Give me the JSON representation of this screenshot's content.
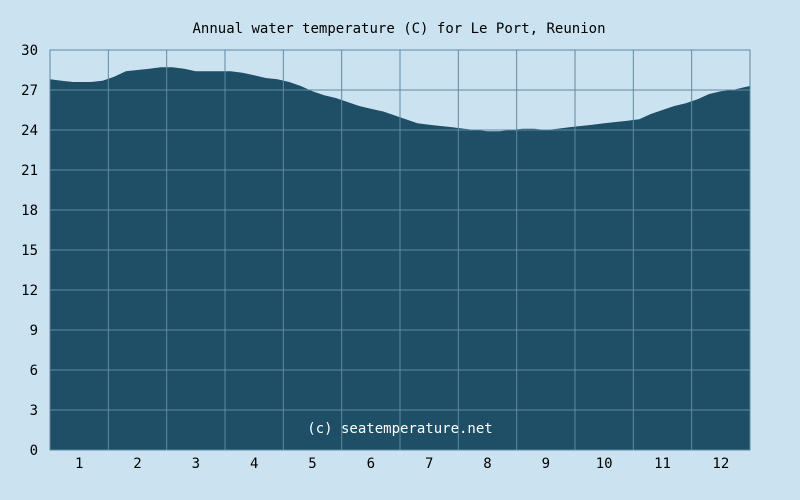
{
  "chart_data": {
    "type": "area",
    "title": "Annual water temperature (C) for Le Port, Reunion",
    "xlabel": "",
    "ylabel": "",
    "xlim": [
      0.5,
      12.5
    ],
    "ylim": [
      0,
      30
    ],
    "x_ticks": [
      "1",
      "2",
      "3",
      "4",
      "5",
      "6",
      "7",
      "8",
      "9",
      "10",
      "11",
      "12"
    ],
    "y_ticks": [
      "0",
      "3",
      "6",
      "9",
      "12",
      "15",
      "18",
      "21",
      "24",
      "27",
      "30"
    ],
    "grid": true,
    "watermark": "(c) seatemperature.net",
    "colors": {
      "background": "#cbe3f0",
      "area": "#1f4e67",
      "grid": "#5f8aa3",
      "frame": "#5f8aa3"
    },
    "series": [
      {
        "x": [
          0.5,
          0.7,
          0.9,
          1.0,
          1.2,
          1.4,
          1.6,
          1.8,
          2.0,
          2.2,
          2.4,
          2.6,
          2.8,
          3.0,
          3.2,
          3.4,
          3.6,
          3.8,
          4.0,
          4.2,
          4.4,
          4.6,
          4.8,
          5.0,
          5.2,
          5.4,
          5.6,
          5.8,
          6.0,
          6.2,
          6.4,
          6.6,
          6.8,
          7.0,
          7.2,
          7.4,
          7.6,
          7.8,
          8.0,
          8.2,
          8.4,
          8.6,
          8.8,
          9.0,
          9.2,
          9.4,
          9.6,
          9.8,
          10.0,
          10.2,
          10.4,
          10.6,
          10.8,
          11.0,
          11.2,
          11.4,
          11.6,
          11.8,
          12.0,
          12.2,
          12.4,
          12.5
        ],
        "values": [
          27.8,
          27.7,
          27.6,
          27.6,
          27.6,
          27.7,
          28.0,
          28.4,
          28.5,
          28.6,
          28.7,
          28.7,
          28.6,
          28.4,
          28.4,
          28.4,
          28.4,
          28.3,
          28.1,
          27.9,
          27.8,
          27.6,
          27.3,
          26.9,
          26.6,
          26.4,
          26.1,
          25.8,
          25.6,
          25.4,
          25.1,
          24.8,
          24.5,
          24.4,
          24.3,
          24.2,
          24.1,
          24.0,
          23.9,
          23.9,
          24.0,
          24.1,
          24.1,
          24.0,
          24.1,
          24.2,
          24.3,
          24.4,
          24.5,
          24.6,
          24.7,
          24.8,
          25.2,
          25.5,
          25.8,
          26.0,
          26.3,
          26.7,
          26.9,
          27.0,
          27.2,
          27.3
        ]
      }
    ]
  }
}
